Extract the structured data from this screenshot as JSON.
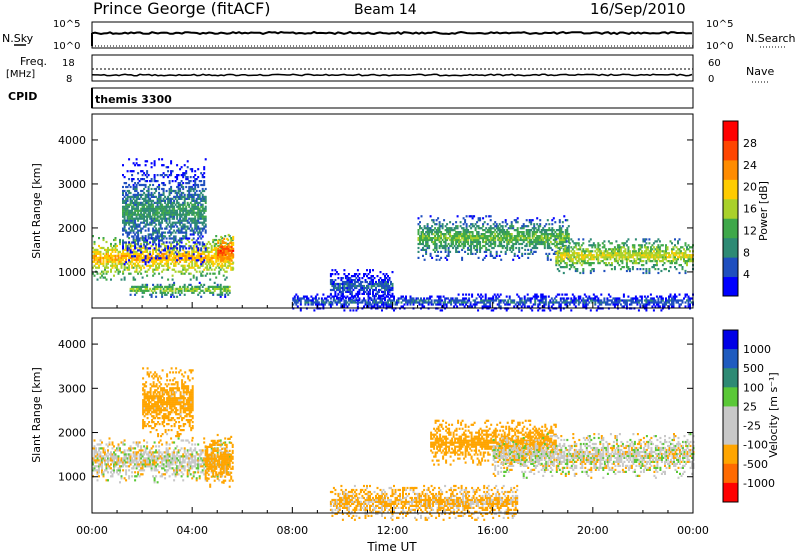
{
  "header": {
    "station": "Prince George (fitACF)",
    "beam": "Beam 14",
    "date": "16/Sep/2010"
  },
  "top_panels": {
    "nsky_label": "N.Sky",
    "nsearch_label": "N.Search",
    "nsky_ticks": [
      "10^5",
      "10^0"
    ],
    "nsearch_ticks": [
      "10^5",
      "10^0"
    ],
    "freq_label": "Freq.",
    "freq_unit": "[MHz]",
    "freq_ticks": [
      "18",
      "8"
    ],
    "nave_label": "Nave",
    "nave_ticks": [
      "60",
      "0"
    ],
    "cpid_label": "CPID",
    "cpid_value": "themis 3300"
  },
  "colors": {
    "power": [
      "#0000ff",
      "#1f4fbf",
      "#2e8a74",
      "#3fa84a",
      "#a9d12a",
      "#ffcc00",
      "#ff8c00",
      "#ff4500",
      "#ff0000"
    ],
    "velocity": [
      "#0000e6",
      "#1f5bbf",
      "#2e8a74",
      "#5ac837",
      "#c8c8c8",
      "#c8c8c8",
      "#ffa500",
      "#ff6a00",
      "#ff0000"
    ]
  },
  "chart_data": [
    {
      "type": "heatmap",
      "title": "Power",
      "ylabel": "Slant Range [km]",
      "xlabel": "",
      "ylim": [
        180,
        4590
      ],
      "xlim": [
        0,
        24
      ],
      "y_ticks": [
        1000,
        2000,
        3000,
        4000
      ],
      "colorbar_label": "Power [dB]",
      "colorbar_ticks": [
        "4",
        "8",
        "12",
        "16",
        "20",
        "24",
        "28"
      ],
      "colorbar_range": [
        0,
        32
      ],
      "echo_regions": [
        {
          "t_start": 0.0,
          "t_end": 5.6,
          "range_center": 1350,
          "range_width": 500,
          "power": 22
        },
        {
          "t_start": 1.2,
          "t_end": 4.5,
          "range_center": 2400,
          "range_width": 1200,
          "power": 10
        },
        {
          "t_start": 1.5,
          "t_end": 5.5,
          "range_center": 620,
          "range_width": 160,
          "power": 16
        },
        {
          "t_start": 5.0,
          "t_end": 5.6,
          "range_center": 1500,
          "range_width": 400,
          "power": 28
        },
        {
          "t_start": 9.5,
          "t_end": 12.0,
          "range_center": 700,
          "range_width": 400,
          "power": 6
        },
        {
          "t_start": 13.0,
          "t_end": 19.0,
          "range_center": 1800,
          "range_width": 500,
          "power": 14
        },
        {
          "t_start": 18.5,
          "t_end": 24.0,
          "range_center": 1400,
          "range_width": 400,
          "power": 18
        },
        {
          "t_start": 8.0,
          "t_end": 24.0,
          "range_center": 350,
          "range_width": 200,
          "power": 6
        }
      ]
    },
    {
      "type": "heatmap",
      "title": "Velocity",
      "ylabel": "Slant Range [km]",
      "xlabel": "Time UT",
      "ylim": [
        180,
        4590
      ],
      "xlim": [
        0,
        24
      ],
      "y_ticks": [
        1000,
        2000,
        3000,
        4000
      ],
      "x_tick_labels": [
        "00:00",
        "04:00",
        "08:00",
        "12:00",
        "16:00",
        "20:00",
        "00:00"
      ],
      "colorbar_label": "Velocity [m s⁻¹]",
      "colorbar_ticks": [
        "1000",
        "500",
        "100",
        "25",
        "-25",
        "-100",
        "-500",
        "-1000"
      ],
      "echo_regions": [
        {
          "t_start": 0.0,
          "t_end": 5.5,
          "range_center": 1400,
          "range_width": 500,
          "velocity": 0
        },
        {
          "t_start": 2.0,
          "t_end": 4.0,
          "range_center": 2700,
          "range_width": 800,
          "velocity": -150
        },
        {
          "t_start": 4.5,
          "t_end": 5.6,
          "range_center": 1400,
          "range_width": 600,
          "velocity": -200
        },
        {
          "t_start": 13.5,
          "t_end": 18.5,
          "range_center": 1800,
          "range_width": 500,
          "velocity": -200
        },
        {
          "t_start": 16.0,
          "t_end": 24.0,
          "range_center": 1500,
          "range_width": 500,
          "velocity": 0
        },
        {
          "t_start": 9.5,
          "t_end": 17.0,
          "range_center": 450,
          "range_width": 400,
          "velocity": -100
        }
      ]
    }
  ]
}
